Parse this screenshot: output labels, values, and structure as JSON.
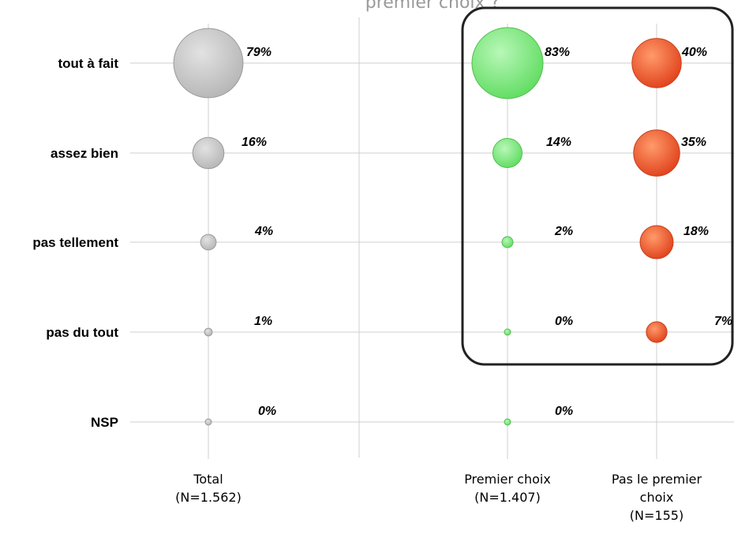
{
  "title_fragment": "premier choix ?",
  "chart_data": {
    "type": "bubble",
    "categories": [
      "tout à fait",
      "assez bien",
      "pas tellement",
      "pas du tout",
      "NSP"
    ],
    "series": [
      {
        "name": "Total",
        "label_lines": [
          "Total",
          "(N=1.562)"
        ],
        "color": "#c0c0c0",
        "values": [
          79,
          16,
          4,
          1,
          0
        ],
        "labels": [
          "79%",
          "16%",
          "4%",
          "1%",
          "0%"
        ]
      },
      {
        "name": "Premier choix",
        "label_lines": [
          "Premier choix",
          "(N=1.407)"
        ],
        "color": "#7ee87e",
        "values": [
          83,
          14,
          2,
          0,
          0
        ],
        "labels": [
          "83%",
          "14%",
          "2%",
          "0%",
          "0%"
        ]
      },
      {
        "name": "Pas le premier choix",
        "label_lines": [
          "Pas le premier",
          "choix",
          "(N=155)"
        ],
        "color": "#f05a28",
        "values": [
          40,
          35,
          18,
          7,
          null
        ],
        "labels": [
          "40%",
          "35%",
          "18%",
          "7%",
          null
        ]
      }
    ],
    "highlight_box": "around Premier choix and Pas le premier choix, rows tout à fait to pas du tout",
    "grid": true
  }
}
